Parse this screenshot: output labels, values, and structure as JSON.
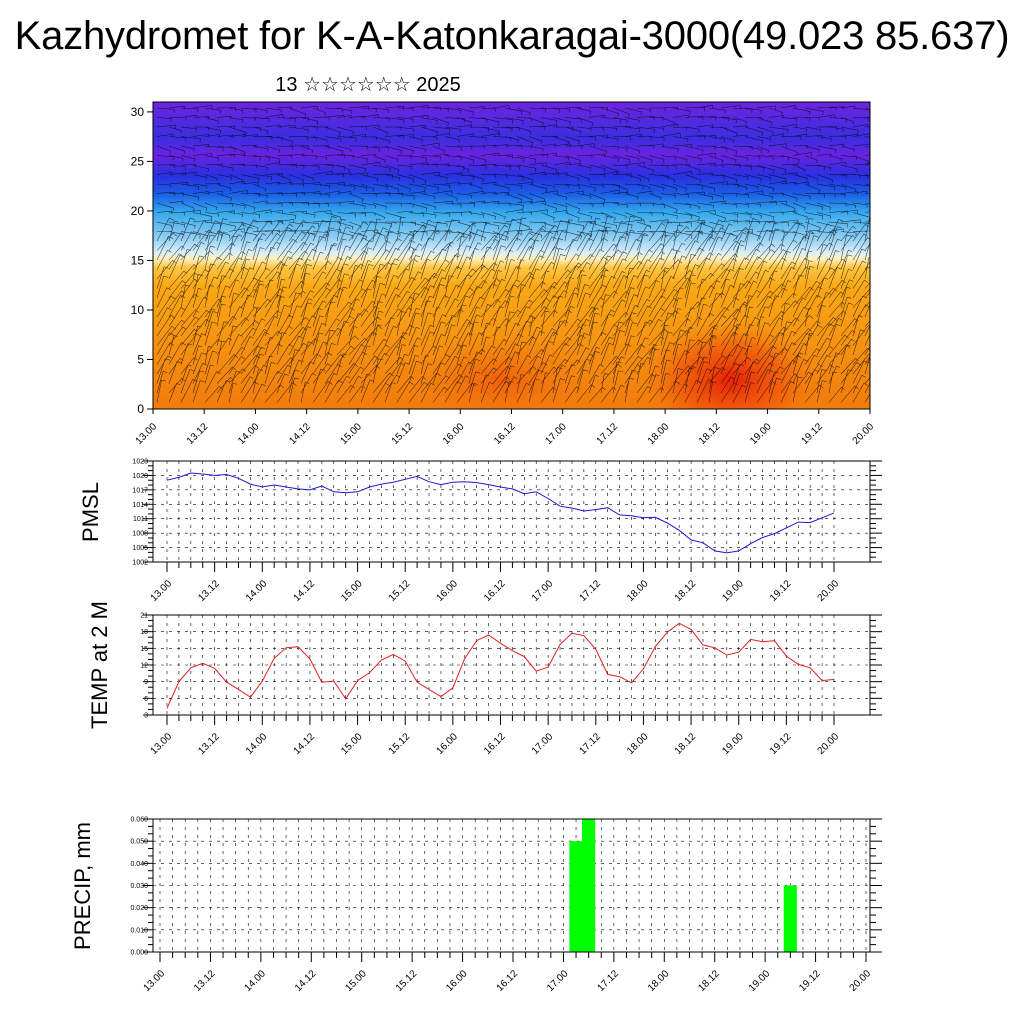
{
  "title": "Kazhydromet for K-A-Katonkaragai-3000(49.023 85.637)",
  "subtitle": "13 ☆☆☆☆☆☆ 2025",
  "time_labels": [
    "13.00",
    "13.12",
    "14.00",
    "14.12",
    "15.00",
    "15.12",
    "16.00",
    "16.12",
    "17.00",
    "17.12",
    "18.00",
    "18.12",
    "19.00",
    "19.12",
    "20.00"
  ],
  "chart_data": [
    {
      "type": "heatmap",
      "description_label": "",
      "x": [
        "13.00",
        "13.12",
        "14.00",
        "14.12",
        "15.00",
        "15.12",
        "16.00",
        "16.12",
        "17.00",
        "17.12",
        "18.00",
        "18.12",
        "19.00",
        "19.12",
        "20.00"
      ],
      "ylim": [
        0,
        31
      ],
      "yticks": [
        0,
        5,
        10,
        15,
        20,
        25,
        30
      ],
      "levels": [
        30,
        25,
        20,
        15,
        10,
        5,
        0
      ],
      "colors": {
        "low": "#e8300a",
        "mid_low": "#f59a10",
        "mid": "#ffd060",
        "transition": "#e8f4f8",
        "mid_high": "#40b0f0",
        "high": "#2a30e0",
        "top": "#7a20e0"
      },
      "vectors": "wind barbs overlaid"
    },
    {
      "type": "line",
      "ylabel": "PMSL",
      "ylim": [
        1002,
        1023
      ],
      "yticks": [
        "1002",
        "1005",
        "1008",
        "1011",
        "1014",
        "1017",
        "1020",
        "1023"
      ],
      "color": "#1a1ad0",
      "x_step_hours": 3,
      "values": [
        1019,
        1019.6,
        1020.5,
        1020.3,
        1020,
        1020.2,
        1019.4,
        1018.2,
        1017.6,
        1018,
        1017.6,
        1017.2,
        1017,
        1017.8,
        1016.6,
        1016.4,
        1016.6,
        1017.6,
        1018.2,
        1018.6,
        1019.2,
        1019.8,
        1018.7,
        1018.1,
        1018.6,
        1018.7,
        1018.5,
        1018.1,
        1017.6,
        1017.2,
        1016.2,
        1016.6,
        1015.2,
        1013.6,
        1013.2,
        1012.6,
        1012.9,
        1013.3,
        1011.8,
        1011.6,
        1011.2,
        1011.3,
        1010.1,
        1008.6,
        1006.6,
        1006,
        1004.3,
        1003.9,
        1004.3,
        1005.8,
        1007.1,
        1007.9,
        1009.1,
        1010.3,
        1010.2,
        1011.2,
        1012.2
      ]
    },
    {
      "type": "line",
      "ylabel": "TEMP at 2 M",
      "ylim": [
        3,
        21
      ],
      "yticks": [
        "3",
        "6",
        "9",
        "12",
        "15",
        "18",
        "21"
      ],
      "color": "#e02020",
      "x_step_hours": 3,
      "values": [
        4.2,
        9,
        11.5,
        12.3,
        11.4,
        8.9,
        7.6,
        6.2,
        9.1,
        13.2,
        15.1,
        15.3,
        13.1,
        8.9,
        9.1,
        5.9,
        9.2,
        10.6,
        12.9,
        13.9,
        12.7,
        8.9,
        7.6,
        6.3,
        7.9,
        13.2,
        16.4,
        17.4,
        15.9,
        14.6,
        13.5,
        10.9,
        11.6,
        15.7,
        17.7,
        17.3,
        14.8,
        10.3,
        9.9,
        8.8,
        11.3,
        15.3,
        17.9,
        19.5,
        18.4,
        15.6,
        15.1,
        13.8,
        14.3,
        16.6,
        16.2,
        16.4,
        13.6,
        12.1,
        11.5,
        9.2,
        9.4
      ]
    },
    {
      "type": "bar",
      "ylabel": "PRECIP, mm",
      "ylim": [
        0,
        0.06
      ],
      "yticks": [
        "0.000",
        "0.010",
        "0.020",
        "0.030",
        "0.040",
        "0.050",
        "0.060"
      ],
      "color": "#00ff00",
      "bars": [
        {
          "hour": 99,
          "value": 0.05
        },
        {
          "hour": 102,
          "value": 0.06
        },
        {
          "hour": 150,
          "value": 0.03
        }
      ]
    }
  ]
}
